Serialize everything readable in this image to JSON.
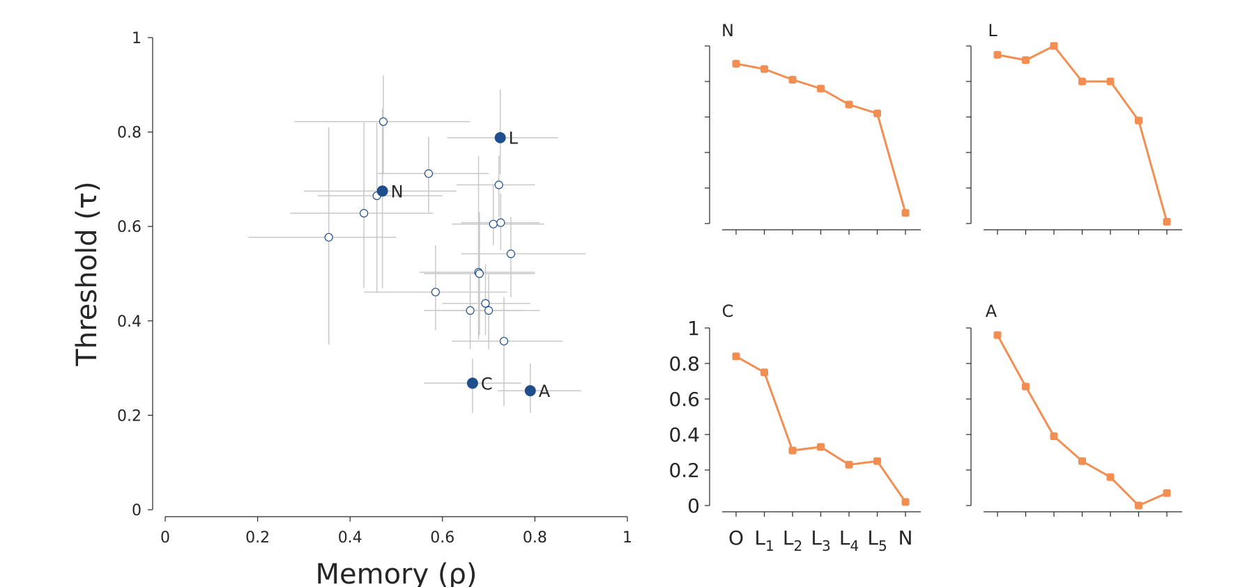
{
  "chart_data": [
    {
      "type": "scatter",
      "title": "",
      "xlabel": "Memory (ρ)",
      "ylabel": "Threshold (τ)",
      "xlim": [
        0,
        1
      ],
      "ylim": [
        0,
        1
      ],
      "xticks": [
        "0",
        "0.2",
        "0.4",
        "0.6",
        "0.8",
        "1"
      ],
      "yticks": [
        "0",
        "0.2",
        "0.4",
        "0.6",
        "0.8",
        "1"
      ],
      "grid": false,
      "legend": "none",
      "colors": {
        "highlighted": "#1f4e8c",
        "open_marker_edge": "#1f4e8c",
        "error_bar": "#c8c8c8"
      },
      "highlighted": [
        {
          "label": "N",
          "x": 0.47,
          "y": 0.675,
          "xerr": [
            0.3,
            0.63
          ],
          "yerr": [
            0.47,
            0.85
          ]
        },
        {
          "label": "L",
          "x": 0.725,
          "y": 0.788,
          "xerr": [
            0.61,
            0.85
          ],
          "yerr": [
            0.71,
            0.89
          ]
        },
        {
          "label": "C",
          "x": 0.665,
          "y": 0.268,
          "xerr": [
            0.56,
            0.77
          ],
          "yerr": [
            0.205,
            0.32
          ]
        },
        {
          "label": "A",
          "x": 0.79,
          "y": 0.252,
          "xerr": [
            0.72,
            0.9
          ],
          "yerr": [
            0.205,
            0.31
          ]
        }
      ],
      "points": [
        {
          "x": 0.472,
          "y": 0.822,
          "xerr": [
            0.28,
            0.66
          ],
          "yerr": [
            0.71,
            0.92
          ]
        },
        {
          "x": 0.57,
          "y": 0.712,
          "xerr": [
            0.46,
            0.7
          ],
          "yerr": [
            0.63,
            0.79
          ]
        },
        {
          "x": 0.722,
          "y": 0.688,
          "xerr": [
            0.63,
            0.8
          ],
          "yerr": [
            0.62,
            0.75
          ]
        },
        {
          "x": 0.458,
          "y": 0.665,
          "xerr": [
            0.33,
            0.6
          ],
          "yerr": [
            0.46,
            0.82
          ]
        },
        {
          "x": 0.43,
          "y": 0.628,
          "xerr": [
            0.27,
            0.58
          ],
          "yerr": [
            0.47,
            0.82
          ]
        },
        {
          "x": 0.71,
          "y": 0.605,
          "xerr": [
            0.62,
            0.82
          ],
          "yerr": [
            0.56,
            0.69
          ]
        },
        {
          "x": 0.726,
          "y": 0.608,
          "xerr": [
            0.64,
            0.81
          ],
          "yerr": [
            0.55,
            0.67
          ]
        },
        {
          "x": 0.354,
          "y": 0.577,
          "xerr": [
            0.18,
            0.5
          ],
          "yerr": [
            0.35,
            0.81
          ]
        },
        {
          "x": 0.748,
          "y": 0.542,
          "xerr": [
            0.64,
            0.91
          ],
          "yerr": [
            0.45,
            0.62
          ]
        },
        {
          "x": 0.678,
          "y": 0.503,
          "xerr": [
            0.55,
            0.8
          ],
          "yerr": [
            0.36,
            0.75
          ]
        },
        {
          "x": 0.68,
          "y": 0.5,
          "xerr": [
            0.56,
            0.8
          ],
          "yerr": [
            0.37,
            0.63
          ]
        },
        {
          "x": 0.585,
          "y": 0.461,
          "xerr": [
            0.43,
            0.74
          ],
          "yerr": [
            0.38,
            0.56
          ]
        },
        {
          "x": 0.693,
          "y": 0.437,
          "xerr": [
            0.6,
            0.79
          ],
          "yerr": [
            0.37,
            0.52
          ]
        },
        {
          "x": 0.66,
          "y": 0.422,
          "xerr": [
            0.56,
            0.77
          ],
          "yerr": [
            0.34,
            0.5
          ]
        },
        {
          "x": 0.7,
          "y": 0.422,
          "xerr": [
            0.6,
            0.81
          ],
          "yerr": [
            0.34,
            0.5
          ]
        },
        {
          "x": 0.733,
          "y": 0.357,
          "xerr": [
            0.62,
            0.86
          ],
          "yerr": [
            0.22,
            0.45
          ]
        }
      ]
    },
    {
      "type": "line",
      "title": "N",
      "categories": [
        "O",
        "L1",
        "L2",
        "L3",
        "L4",
        "L5",
        "N"
      ],
      "values": [
        0.9,
        0.87,
        0.81,
        0.76,
        0.67,
        0.62,
        0.06
      ],
      "ylim": [
        0,
        1
      ],
      "color": "#f28e52",
      "show_x_labels": false,
      "show_y_labels": false
    },
    {
      "type": "line",
      "title": "L",
      "categories": [
        "O",
        "L1",
        "L2",
        "L3",
        "L4",
        "L5",
        "N"
      ],
      "values": [
        0.95,
        0.92,
        1.0,
        0.8,
        0.8,
        0.58,
        0.01
      ],
      "ylim": [
        0,
        1
      ],
      "color": "#f28e52",
      "show_x_labels": false,
      "show_y_labels": false
    },
    {
      "type": "line",
      "title": "C",
      "categories": [
        "O",
        "L1",
        "L2",
        "L3",
        "L4",
        "L5",
        "N"
      ],
      "values": [
        0.84,
        0.75,
        0.31,
        0.33,
        0.23,
        0.25,
        0.02
      ],
      "ylim": [
        0,
        1
      ],
      "yticks": [
        "0",
        "0.2",
        "0.4",
        "0.6",
        "0.8",
        "1"
      ],
      "xtick_labels": [
        {
          "base": "O",
          "sub": ""
        },
        {
          "base": "L",
          "sub": "1"
        },
        {
          "base": "L",
          "sub": "2"
        },
        {
          "base": "L",
          "sub": "3"
        },
        {
          "base": "L",
          "sub": "4"
        },
        {
          "base": "L",
          "sub": "5"
        },
        {
          "base": "N",
          "sub": ""
        }
      ],
      "color": "#f28e52",
      "show_x_labels": true,
      "show_y_labels": true
    },
    {
      "type": "line",
      "title": "A",
      "categories": [
        "O",
        "L1",
        "L2",
        "L3",
        "L4",
        "L5",
        "N"
      ],
      "values": [
        0.96,
        0.67,
        0.39,
        0.25,
        0.16,
        0.0,
        0.07
      ],
      "ylim": [
        0,
        1
      ],
      "color": "#f28e52",
      "show_x_labels": false,
      "show_y_labels": false
    }
  ]
}
